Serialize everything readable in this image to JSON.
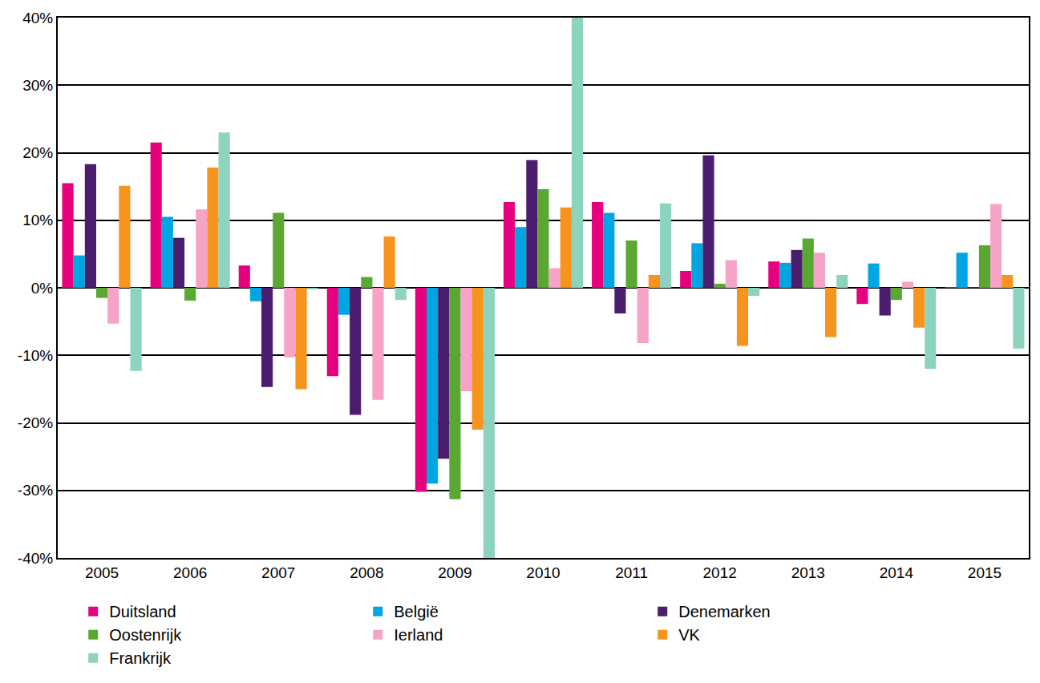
{
  "chart_data": {
    "type": "bar",
    "categories": [
      "2005",
      "2006",
      "2007",
      "2008",
      "2009",
      "2010",
      "2011",
      "2012",
      "2013",
      "2014",
      "2015"
    ],
    "series": [
      {
        "name": "Duitsland",
        "color": "#e6007e",
        "values": [
          15.5,
          21.5,
          3.3,
          -13.1,
          -30.2,
          12.7,
          12.7,
          2.5,
          3.9,
          -2.4,
          0.1
        ]
      },
      {
        "name": "België",
        "color": "#00a6e2",
        "values": [
          4.8,
          10.5,
          -2.0,
          -4.0,
          -29.0,
          9.0,
          11.1,
          6.6,
          3.7,
          3.6,
          5.2
        ]
      },
      {
        "name": "Denemarken",
        "color": "#4b1d6e",
        "values": [
          18.3,
          7.4,
          -14.7,
          -18.8,
          -25.3,
          18.9,
          -3.8,
          19.6,
          5.6,
          -4.1,
          0.1
        ]
      },
      {
        "name": "Oostenrijk",
        "color": "#5aa832",
        "values": [
          -1.5,
          -1.9,
          11.1,
          1.6,
          -31.3,
          14.6,
          7.0,
          0.6,
          7.3,
          -1.8,
          6.3
        ]
      },
      {
        "name": "Ierland",
        "color": "#f5a3c7",
        "values": [
          -5.3,
          11.6,
          -10.3,
          -16.6,
          -15.3,
          2.9,
          -8.2,
          4.1,
          5.2,
          0.9,
          12.4
        ]
      },
      {
        "name": "VK",
        "color": "#f7941d",
        "values": [
          15.1,
          17.8,
          -15.0,
          7.6,
          -21.0,
          11.9,
          1.9,
          -8.6,
          -7.3,
          -5.9,
          1.9
        ]
      },
      {
        "name": "Frankrijk",
        "color": "#8dd3c0",
        "values": [
          -12.3,
          23.0,
          -0.2,
          -1.8,
          -40,
          40,
          12.5,
          -1.2,
          1.9,
          -12.0,
          -9.0
        ]
      }
    ],
    "ylim": [
      -40,
      40
    ],
    "yticks": [
      {
        "value": -40,
        "label": "-40%"
      },
      {
        "value": -30,
        "label": "-30%"
      },
      {
        "value": -20,
        "label": "-20%"
      },
      {
        "value": -10,
        "label": "-10%"
      },
      {
        "value": 0,
        "label": "0%"
      },
      {
        "value": 10,
        "label": "10%"
      },
      {
        "value": 20,
        "label": "20%"
      },
      {
        "value": 30,
        "label": "30%"
      },
      {
        "value": 40,
        "label": "40%"
      }
    ],
    "grid": true,
    "legend": "bottom"
  }
}
